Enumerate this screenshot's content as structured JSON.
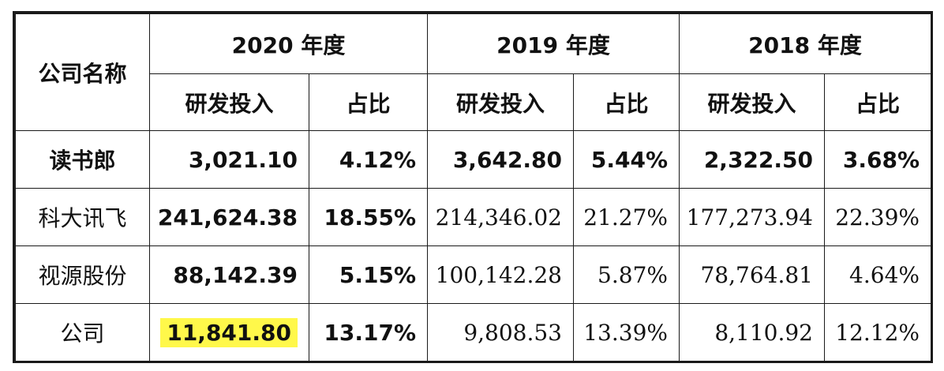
{
  "header": {
    "company_col": "公司名称",
    "years": [
      "2020 年度",
      "2019 年度",
      "2018 年度"
    ],
    "sub": {
      "rd": "研发投入",
      "ratio": "占比"
    }
  },
  "rows": [
    {
      "name": "读书郎",
      "y2020_rd": "3,021.10",
      "y2020_ratio": "4.12%",
      "y2019_rd": "3,642.80",
      "y2019_ratio": "5.44%",
      "y2018_rd": "2,322.50",
      "y2018_ratio": "3.68%"
    },
    {
      "name": "科大讯飞",
      "y2020_rd": "241,624.38",
      "y2020_ratio": "18.55%",
      "y2019_rd": "214,346.02",
      "y2019_ratio": "21.27%",
      "y2018_rd": "177,273.94",
      "y2018_ratio": "22.39%"
    },
    {
      "name": "视源股份",
      "y2020_rd": "88,142.39",
      "y2020_ratio": "5.15%",
      "y2019_rd": "100,142.28",
      "y2019_ratio": "5.87%",
      "y2018_rd": "78,764.81",
      "y2018_ratio": "4.64%"
    },
    {
      "name": "公司",
      "y2020_rd": "11,841.80",
      "y2020_ratio": "13.17%",
      "y2019_rd": "9,808.53",
      "y2019_ratio": "13.39%",
      "y2018_rd": "8,110.92",
      "y2018_ratio": "12.12%"
    }
  ],
  "highlight_color": "#fff84a"
}
